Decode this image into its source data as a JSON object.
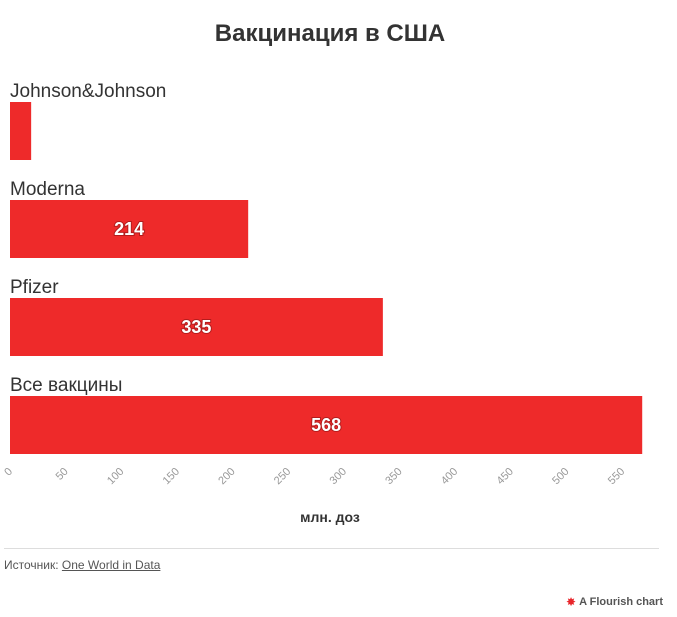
{
  "title": "Вакцинация в США",
  "source": {
    "label": "Источник:",
    "link_text": "One World in Data"
  },
  "credit": "A Flourish chart",
  "colors": {
    "bar": "#ee2a2a",
    "tick": "#999999",
    "text": "#333333"
  },
  "chart_data": {
    "type": "bar",
    "orientation": "horizontal",
    "title": "Вакцинация в США",
    "xlabel": "млн. доз",
    "ylabel": "",
    "xlim": [
      0,
      575
    ],
    "xticks": [
      0,
      50,
      100,
      150,
      200,
      250,
      300,
      350,
      400,
      450,
      500,
      550
    ],
    "categories": [
      "Johnson&Johnson",
      "Moderna",
      "Pfizer",
      "Все вакцины"
    ],
    "values": [
      19,
      214,
      335,
      568
    ],
    "value_labels": [
      "",
      "214",
      "335",
      "568"
    ]
  }
}
